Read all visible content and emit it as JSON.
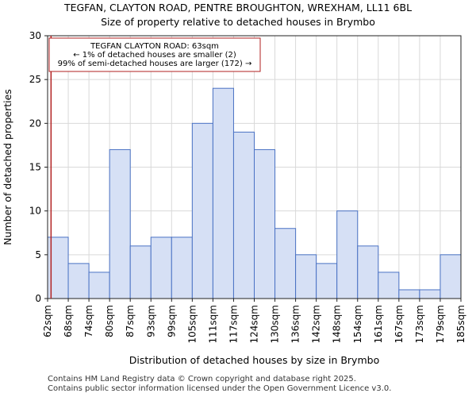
{
  "chart_data": {
    "type": "bar",
    "title": "TEGFAN, CLAYTON ROAD, PENTRE BROUGHTON, WREXHAM, LL11 6BL",
    "subtitle": "Size of property relative to detached houses in Brymbo",
    "xlabel": "Distribution of detached houses by size in Brymbo",
    "ylabel": "Number of detached properties",
    "bin_edges": [
      "62sqm",
      "68sqm",
      "74sqm",
      "80sqm",
      "87sqm",
      "93sqm",
      "99sqm",
      "105sqm",
      "111sqm",
      "117sqm",
      "124sqm",
      "130sqm",
      "136sqm",
      "142sqm",
      "148sqm",
      "154sqm",
      "161sqm",
      "167sqm",
      "173sqm",
      "179sqm",
      "185sqm"
    ],
    "values": [
      7,
      4,
      3,
      17,
      6,
      7,
      7,
      20,
      24,
      19,
      17,
      8,
      5,
      4,
      10,
      6,
      3,
      1,
      1,
      5
    ],
    "ylim": [
      0,
      30
    ],
    "yticks": [
      0,
      5,
      10,
      15,
      20,
      25,
      30
    ],
    "grid": true,
    "bar_fill": "#d6e0f5",
    "bar_stroke": "#4a72c4",
    "marker": {
      "value_sqm": 63,
      "color": "#b22222"
    },
    "annotation": {
      "lines": [
        "TEGFAN CLAYTON ROAD: 63sqm",
        "← 1% of detached houses are smaller (2)",
        "99% of semi-detached houses are larger (172) →"
      ],
      "border_color": "#b22222"
    }
  },
  "footer": {
    "line1": "Contains HM Land Registry data © Crown copyright and database right 2025.",
    "line2": "Contains public sector information licensed under the Open Government Licence v3.0."
  }
}
